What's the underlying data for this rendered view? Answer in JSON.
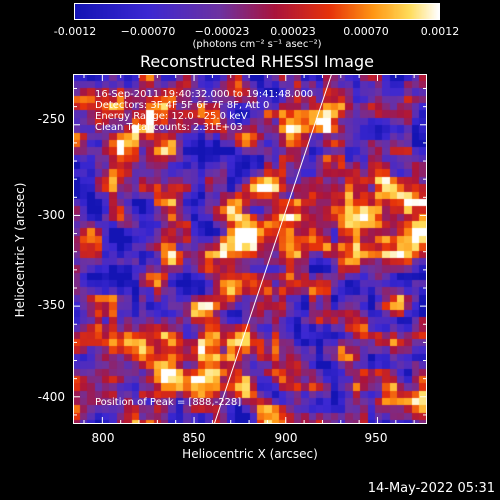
{
  "colorbar": {
    "ticks": [
      "-0.0012",
      "−0.00070",
      "−0.00023",
      "0.00023",
      "0.00070",
      "0.0012"
    ],
    "unit_label": "(photons cm⁻² s⁻¹ asec⁻²)",
    "range": [
      -0.0012,
      0.0012
    ]
  },
  "image": {
    "title": "Reconstructed RHESSI Image",
    "info_lines": [
      "16-Sep-2011 19:40:32.000 to 19:41:48.000",
      "Detectors: 3F 4F 5F 6F 7F 8F, Att 0",
      "Energy Range: 12.0 - 25.0 keV",
      "Clean     Total counts: 2.31E+03"
    ],
    "peak_label": "Position of Peak = [888,-228]",
    "xlabel": "Heliocentric X (arcsec)",
    "ylabel": "Heliocentric Y (arcsec)",
    "x_ticks": [
      "800",
      "850",
      "900",
      "950"
    ],
    "y_ticks": [
      "-250",
      "-300",
      "-350",
      "-400"
    ],
    "x_range": [
      784,
      977
    ],
    "y_range": [
      -415,
      -222
    ],
    "limb_line": [
      [
        861,
        -415
      ],
      [
        925,
        -222
      ]
    ]
  },
  "colors": {
    "background": "#000000",
    "text": "#ffffff",
    "limb": "#ffffff"
  },
  "footer": {
    "datestamp": "14-May-2022 05:31"
  }
}
